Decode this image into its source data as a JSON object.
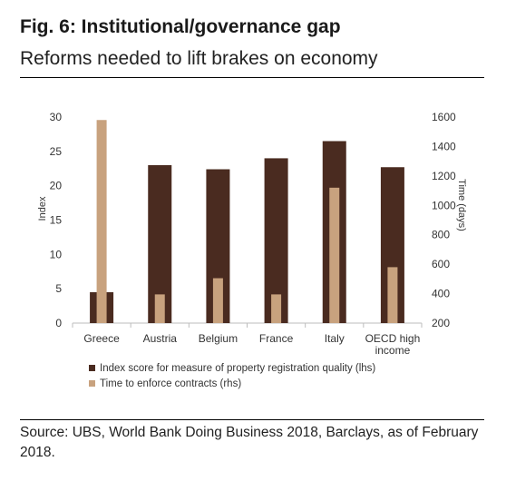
{
  "header": {
    "title": "Fig. 6: Institutional/governance gap",
    "subtitle": "Reforms needed to lift brakes on economy"
  },
  "footer": {
    "source": "Source: UBS, World Bank Doing Business 2018, Barclays, as of February 2018."
  },
  "chart_data": {
    "type": "bar",
    "title": "",
    "categories": [
      [
        "Greece"
      ],
      [
        "Austria"
      ],
      [
        "Belgium"
      ],
      [
        "France"
      ],
      [
        "Italy"
      ],
      [
        "OECD high",
        "income"
      ]
    ],
    "ylabel_left": "Index",
    "ylabel_right": "Time (days)",
    "ylim_left": [
      0,
      30
    ],
    "ylim_right": [
      200,
      1600
    ],
    "yticks_left": [
      0,
      5,
      10,
      15,
      20,
      25,
      30
    ],
    "yticks_right": [
      200,
      400,
      600,
      800,
      1000,
      1200,
      1400,
      1600
    ],
    "grid": false,
    "legend_position": "bottom",
    "series": [
      {
        "name": "Index score for measure of property registration quality (lhs)",
        "axis": "left",
        "color": "#4a2b20",
        "values": [
          4.5,
          23.0,
          22.4,
          24.0,
          26.5,
          22.7
        ]
      },
      {
        "name": "Time to enforce contracts (rhs)",
        "axis": "right",
        "color": "#c8a27e",
        "values": [
          1580,
          395,
          505,
          395,
          1120,
          580
        ]
      }
    ]
  }
}
